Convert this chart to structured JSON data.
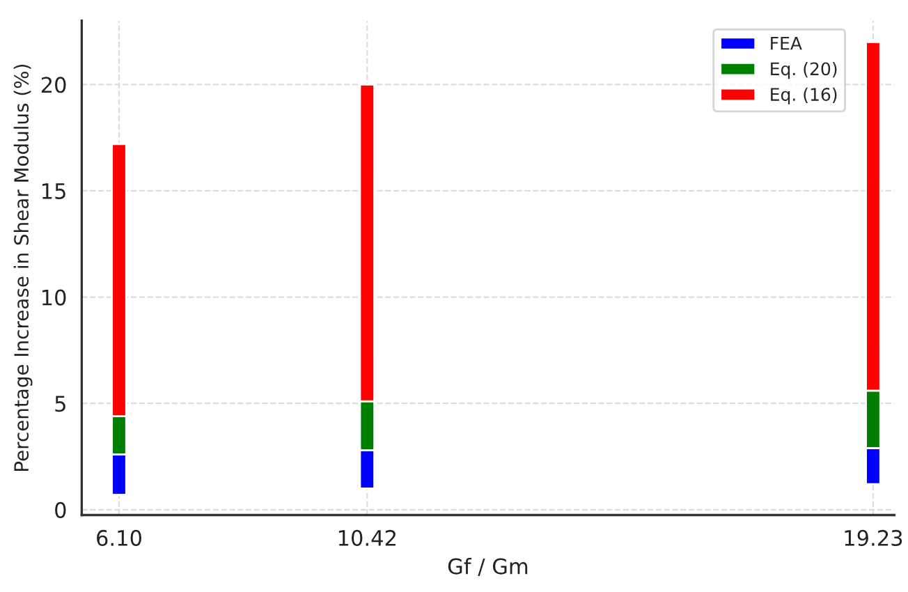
{
  "chart_data": {
    "type": "bar",
    "xlabel": "Gf / Gm",
    "ylabel": "Percentage Increase in Shear Modulus (%)",
    "x": [
      6.1,
      10.42,
      19.23
    ],
    "series": [
      {
        "name": "FEA",
        "color": "#0000ff",
        "base": [
          0.7,
          1.0,
          1.2
        ],
        "values": [
          1.9,
          1.8,
          1.7
        ]
      },
      {
        "name": "Eq. (20)",
        "color": "#008000",
        "base": [
          2.6,
          2.8,
          2.9
        ],
        "values": [
          1.8,
          2.3,
          2.7
        ]
      },
      {
        "name": "Eq. (16)",
        "color": "#ff0000",
        "base": [
          4.4,
          5.1,
          5.6
        ],
        "values": [
          12.8,
          14.9,
          16.4
        ]
      }
    ],
    "xlim": [
      5.45,
      19.6
    ],
    "xticks": [
      {
        "value": 6.1,
        "label": "6.10"
      },
      {
        "value": 10.42,
        "label": "10.42"
      },
      {
        "value": 19.23,
        "label": "19.23"
      }
    ],
    "ylim": [
      -0.25,
      23
    ],
    "yticks": [
      0,
      5,
      10,
      15,
      20
    ],
    "grid": true,
    "legend": "top right"
  }
}
